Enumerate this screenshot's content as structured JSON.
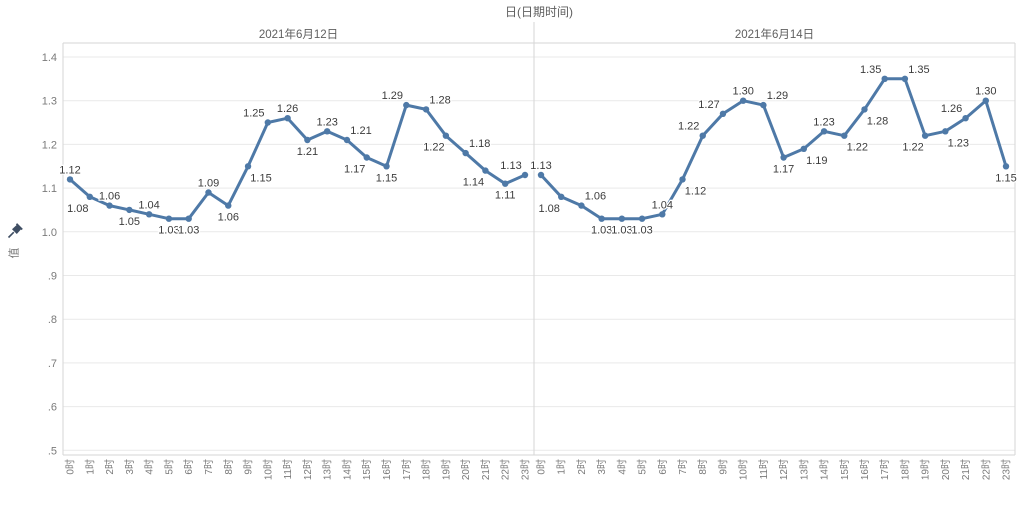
{
  "title": "日(日期时间)",
  "y_axis_label": "值",
  "colors": {
    "line": "#4e79a7",
    "marker": "#4e79a7",
    "data_label": "#3c3c3c",
    "axis_text": "#7a7a7a",
    "header_text": "#5f5f5f",
    "grid": "#e9e9e9",
    "frame": "#d6d6d6",
    "pin": "#3f4e63"
  },
  "chart_data": {
    "type": "line",
    "title": "日(日期时间)",
    "ylabel": "值",
    "ylim": [
      0.5,
      1.4
    ],
    "grid": true,
    "legend": "none",
    "markers": true,
    "y_ticks": [
      "1.4",
      "1.3",
      "1.2",
      "1.1",
      "1.0",
      ".9",
      ".8",
      ".7",
      ".6",
      ".5"
    ],
    "y_tick_values": [
      1.4,
      1.3,
      1.2,
      1.1,
      1.0,
      0.9,
      0.8,
      0.7,
      0.6,
      0.5
    ],
    "x_categories": [
      "0时",
      "1时",
      "2时",
      "3时",
      "4时",
      "5时",
      "6时",
      "7时",
      "8时",
      "9时",
      "10时",
      "11时",
      "12时",
      "13时",
      "14时",
      "15时",
      "16时",
      "17时",
      "18时",
      "19时",
      "20时",
      "21时",
      "22时",
      "23时"
    ],
    "panels": [
      {
        "name": "2021年6月12日",
        "values": [
          1.12,
          1.08,
          1.06,
          1.05,
          1.04,
          1.03,
          1.03,
          1.09,
          1.06,
          1.15,
          1.25,
          1.26,
          1.21,
          1.23,
          1.21,
          1.17,
          1.15,
          1.29,
          1.28,
          1.22,
          1.18,
          1.14,
          1.11,
          1.13
        ],
        "label_side": [
          "a",
          "bl",
          "a",
          "b",
          "a",
          "b",
          "b",
          "a",
          "b",
          "br",
          "al",
          "a",
          "b",
          "a",
          "ar",
          "bl",
          "b",
          "al",
          "ar",
          "bl",
          "ar",
          "bl",
          "b",
          "al"
        ]
      },
      {
        "name": "2021年6月14日",
        "values": [
          1.13,
          1.08,
          1.06,
          1.03,
          1.03,
          1.03,
          1.04,
          1.12,
          1.22,
          1.27,
          1.3,
          1.29,
          1.17,
          1.19,
          1.23,
          1.22,
          1.28,
          1.35,
          1.35,
          1.22,
          1.23,
          1.26,
          1.3,
          1.15
        ],
        "label_side": [
          "a",
          "bl",
          "ar",
          "b",
          "b",
          "b",
          "a",
          "br",
          "al",
          "al",
          "a",
          "ar",
          "b",
          "br",
          "a",
          "br",
          "br",
          "al",
          "ar",
          "bl",
          "br",
          "al",
          "a",
          "b"
        ]
      }
    ]
  }
}
